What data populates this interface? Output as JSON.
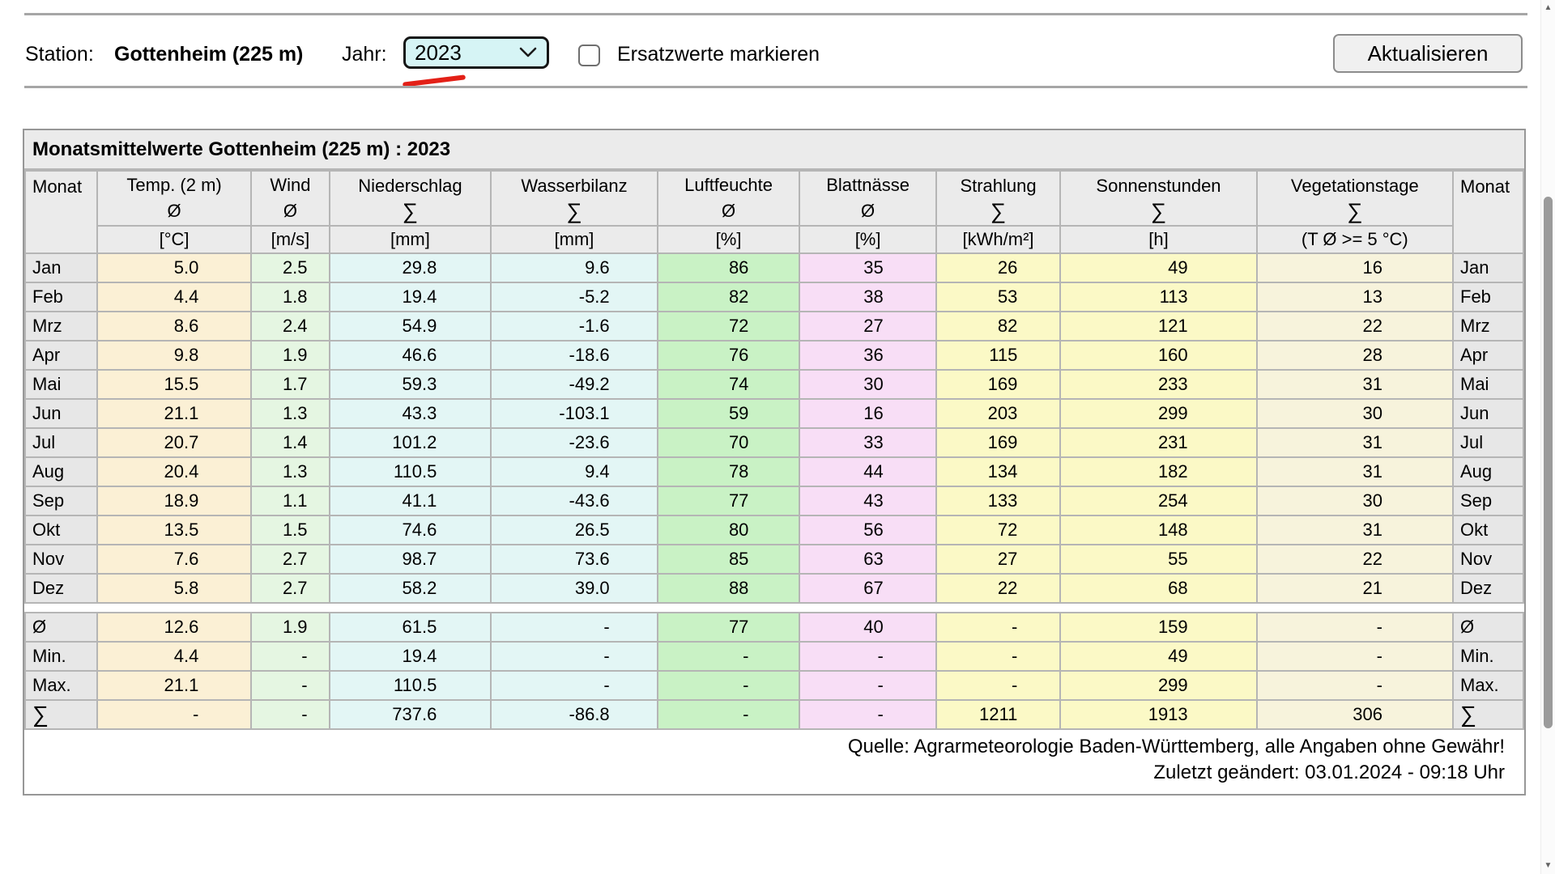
{
  "topbar": {
    "station_label": "Station:",
    "station_value": "Gottenheim (225 m)",
    "year_label": "Jahr:",
    "year_value": "2023",
    "checkbox_label": "Ersatzwerte markieren",
    "update_button_label": "Aktualisieren",
    "select_bg_color": "#d6f4f5",
    "annotation_color": "#e32017"
  },
  "table": {
    "title": "Monatsmittelwerte Gottenheim (225 m) : 2023",
    "columns": [
      {
        "name": "Monat",
        "agg": "",
        "unit": "",
        "color": "#e7e7e7"
      },
      {
        "name": "Temp. (2 m)",
        "agg": "Ø",
        "unit": "[°C]",
        "color": "#fbf0d5"
      },
      {
        "name": "Wind",
        "agg": "Ø",
        "unit": "[m/s]",
        "color": "#e5f6e2"
      },
      {
        "name": "Niederschlag",
        "agg": "∑",
        "unit": "[mm]",
        "color": "#e3f6f5"
      },
      {
        "name": "Wasserbilanz",
        "agg": "∑",
        "unit": "[mm]",
        "color": "#e3f6f5"
      },
      {
        "name": "Luftfeuchte",
        "agg": "Ø",
        "unit": "[%]",
        "color": "#c9f2c5"
      },
      {
        "name": "Blattnässe",
        "agg": "Ø",
        "unit": "[%]",
        "color": "#f8def6"
      },
      {
        "name": "Strahlung",
        "agg": "∑",
        "unit": "[kWh/m²]",
        "color": "#fbf9c6"
      },
      {
        "name": "Sonnenstunden",
        "agg": "∑",
        "unit": "[h]",
        "color": "#fbf9c6"
      },
      {
        "name": "Vegetationstage",
        "agg": "∑",
        "unit": "(T Ø >= 5 °C)",
        "color": "#f7f3dc"
      },
      {
        "name": "Monat",
        "agg": "",
        "unit": "",
        "color": "#e7e7e7"
      }
    ],
    "rows": [
      {
        "month": "Jan",
        "values": [
          "5.0",
          "2.5",
          "29.8",
          "9.6",
          "86",
          "35",
          "26",
          "49",
          "16"
        ]
      },
      {
        "month": "Feb",
        "values": [
          "4.4",
          "1.8",
          "19.4",
          "-5.2",
          "82",
          "38",
          "53",
          "113",
          "13"
        ]
      },
      {
        "month": "Mrz",
        "values": [
          "8.6",
          "2.4",
          "54.9",
          "-1.6",
          "72",
          "27",
          "82",
          "121",
          "22"
        ]
      },
      {
        "month": "Apr",
        "values": [
          "9.8",
          "1.9",
          "46.6",
          "-18.6",
          "76",
          "36",
          "115",
          "160",
          "28"
        ]
      },
      {
        "month": "Mai",
        "values": [
          "15.5",
          "1.7",
          "59.3",
          "-49.2",
          "74",
          "30",
          "169",
          "233",
          "31"
        ]
      },
      {
        "month": "Jun",
        "values": [
          "21.1",
          "1.3",
          "43.3",
          "-103.1",
          "59",
          "16",
          "203",
          "299",
          "30"
        ]
      },
      {
        "month": "Jul",
        "values": [
          "20.7",
          "1.4",
          "101.2",
          "-23.6",
          "70",
          "33",
          "169",
          "231",
          "31"
        ]
      },
      {
        "month": "Aug",
        "values": [
          "20.4",
          "1.3",
          "110.5",
          "9.4",
          "78",
          "44",
          "134",
          "182",
          "31"
        ]
      },
      {
        "month": "Sep",
        "values": [
          "18.9",
          "1.1",
          "41.1",
          "-43.6",
          "77",
          "43",
          "133",
          "254",
          "30"
        ]
      },
      {
        "month": "Okt",
        "values": [
          "13.5",
          "1.5",
          "74.6",
          "26.5",
          "80",
          "56",
          "72",
          "148",
          "31"
        ]
      },
      {
        "month": "Nov",
        "values": [
          "7.6",
          "2.7",
          "98.7",
          "73.6",
          "85",
          "63",
          "27",
          "55",
          "22"
        ]
      },
      {
        "month": "Dez",
        "values": [
          "5.8",
          "2.7",
          "58.2",
          "39.0",
          "88",
          "67",
          "22",
          "68",
          "21"
        ]
      }
    ],
    "summary": [
      {
        "label": "Ø",
        "values": [
          "12.6",
          "1.9",
          "61.5",
          "-",
          "77",
          "40",
          "-",
          "159",
          "-"
        ]
      },
      {
        "label": "Min.",
        "values": [
          "4.4",
          "-",
          "19.4",
          "-",
          "-",
          "-",
          "-",
          "49",
          "-"
        ]
      },
      {
        "label": "Max.",
        "values": [
          "21.1",
          "-",
          "110.5",
          "-",
          "-",
          "-",
          "-",
          "299",
          "-"
        ]
      },
      {
        "label": "∑",
        "values": [
          "-",
          "-",
          "737.6",
          "-86.8",
          "-",
          "-",
          "1211",
          "1913",
          "306"
        ]
      }
    ],
    "footer_line1": "Quelle: Agrarmeteorologie Baden-Württemberg, alle Angaben ohne Gewähr!",
    "footer_line2": "Zuletzt geändert: 03.01.2024 - 09:18 Uhr"
  },
  "scrollbar": {
    "up_glyph": "▲",
    "down_glyph": "▼"
  }
}
